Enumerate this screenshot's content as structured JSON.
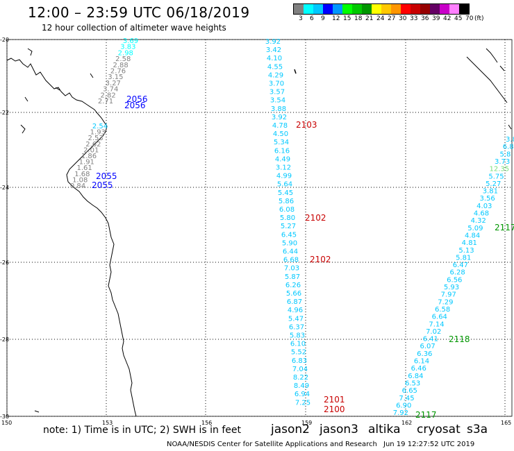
{
  "header": {
    "title": "12:00 – 23:59 UTC 06/18/2019",
    "subtitle": "12 hour collection of altimeter wave heights"
  },
  "legend": {
    "colors": [
      "#808080",
      "#00ffff",
      "#00c8ff",
      "#0000ff",
      "#0096ff",
      "#00ff00",
      "#00c800",
      "#009600",
      "#ffff00",
      "#ffc800",
      "#ff9600",
      "#ff0000",
      "#c80000",
      "#960000",
      "#640064",
      "#c800c8",
      "#ff80ff",
      "#000000"
    ],
    "labels": [
      "3",
      "6",
      "9",
      "12",
      "15",
      "18",
      "21",
      "24",
      "27",
      "30",
      "33",
      "36",
      "39",
      "42",
      "45",
      "70",
      "(ft)"
    ]
  },
  "axes": {
    "lat_labels": [
      "-20",
      "-22",
      "-24",
      "-26",
      "-28",
      "-30"
    ],
    "lon_labels": [
      "150",
      "153",
      "156",
      "159",
      "162",
      "165"
    ]
  },
  "tracks": {
    "track1_upper": {
      "color": "#808080",
      "values": [
        "3.69",
        "3.83",
        "2.98",
        "2.58",
        "2.88",
        "2.76",
        "3.15",
        "3.27",
        "3.74",
        "2.82",
        "2.71"
      ],
      "times": [
        "2056",
        "2056"
      ]
    },
    "track1_lower": {
      "color": "#808080",
      "values": [
        "2.54",
        "1.93",
        "2.53",
        "2.62",
        "2.01",
        "1.86",
        "1.91",
        "1.61",
        "1.68",
        "1.08",
        "0.84"
      ],
      "times": [
        "2055",
        "2055"
      ]
    },
    "track2": {
      "color": "#00c8ff",
      "values": [
        "3.92",
        "3.42",
        "4.10",
        "4.55",
        "4.29",
        "3.70",
        "3.57",
        "3.54",
        "3.88",
        "3.92",
        "4.78",
        "4.50",
        "5.34",
        "6.16",
        "4.49",
        "3.12",
        "4.99",
        "5.64",
        "5.45",
        "5.86",
        "6.08",
        "5.80",
        "5.27",
        "6.45",
        "5.90",
        "6.44",
        "6.68",
        "7.03",
        "5.87",
        "6.26",
        "5.66",
        "6.87",
        "4.96",
        "5.47",
        "6.37",
        "5.83",
        "6.10",
        "5.52",
        "6.83",
        "7.04",
        "8.22",
        "8.49",
        "6.94",
        "7.25"
      ],
      "times": [
        "2103",
        "2102",
        "2102",
        "2101",
        "2100"
      ]
    },
    "track3": {
      "color": "#00c8ff",
      "values": [
        "3.8",
        "6.8",
        "5.8",
        "3.73",
        "12.35",
        "5.75",
        "5.27",
        "3.81",
        "3.56",
        "4.03",
        "4.68",
        "4.32",
        "5.09",
        "4.84",
        "4.81",
        "5.13",
        "5.81",
        "6.47",
        "6.28",
        "6.56",
        "5.93",
        "7.97",
        "7.29",
        "6.58",
        "6.64",
        "7.14",
        "7.02",
        "6.41",
        "6.07",
        "6.36",
        "6.14",
        "6.46",
        "6.84",
        "6.53",
        "6.65",
        "7.45",
        "6.90",
        "7.92"
      ],
      "times": [
        "2117",
        "2118",
        "2117"
      ]
    }
  },
  "footer": {
    "note": "note: 1) Time is in UTC; 2) SWH is in feet",
    "satellites": [
      {
        "name": "jason2",
        "color": "#0000ff"
      },
      {
        "name": "jason3",
        "color": "#009600"
      },
      {
        "name": "altika",
        "color": "#ff9600"
      },
      {
        "name": "cryosat",
        "color": "#ff0000"
      },
      {
        "name": "s3a",
        "color": "#960000"
      }
    ],
    "credit": "NOAA/NESDIS Center for Satellite Applications and Research",
    "timestamp": "Jun 19 12:27:52 UTC 2019"
  }
}
